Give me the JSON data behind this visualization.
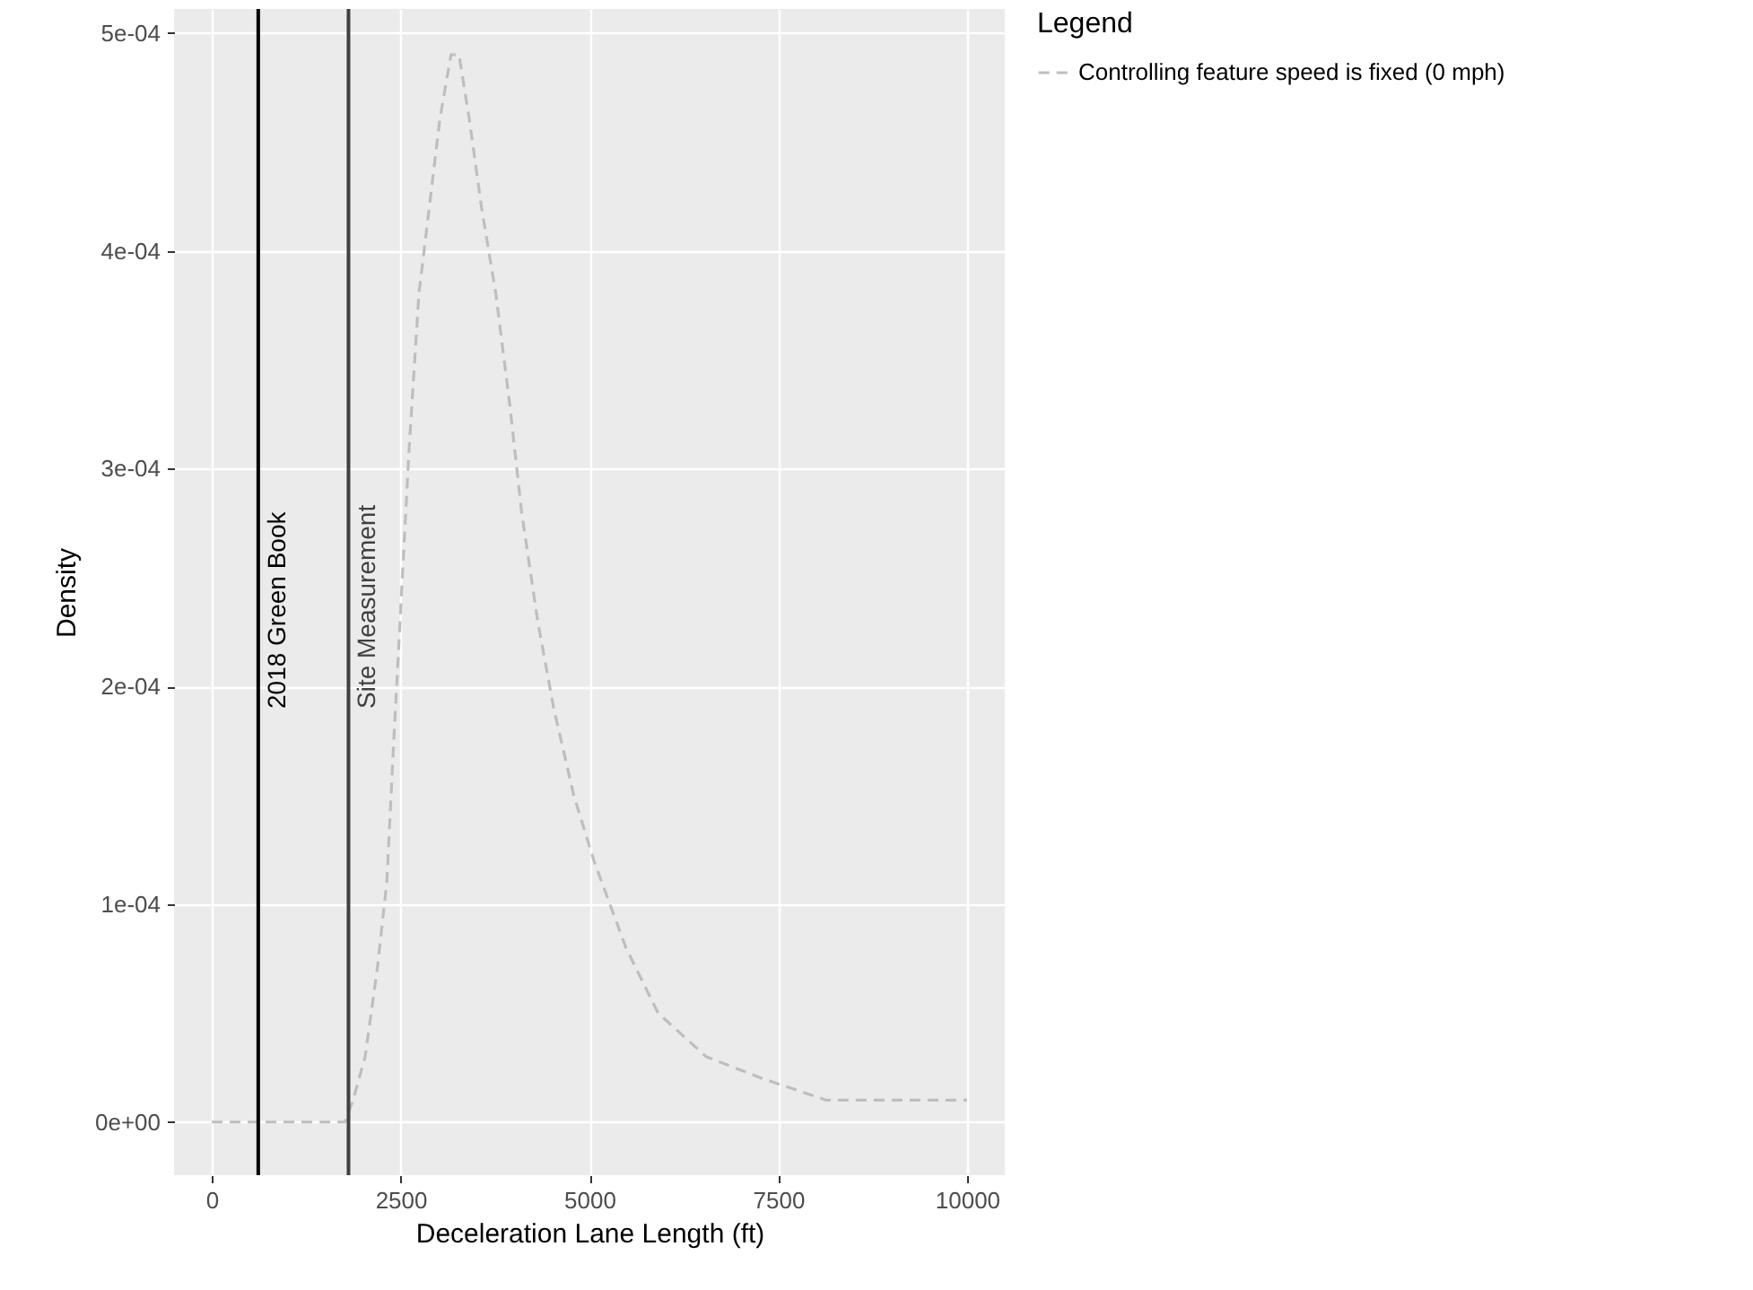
{
  "chart_data": {
    "type": "line",
    "xlabel": "Deceleration Lane Length (ft)",
    "ylabel": "Density",
    "legend_title": "Legend",
    "x": [
      0,
      1764,
      1870,
      2030,
      2190,
      2317,
      2402,
      2508,
      2614,
      2742,
      2880,
      3018,
      3167,
      3273,
      3411,
      3571,
      3762,
      3943,
      4102,
      4315,
      4527,
      4793,
      5059,
      5484,
      5909,
      6546,
      7290,
      8140,
      8884,
      10000
    ],
    "series": [
      {
        "name": "Controlling feature speed is fixed (0 mph)",
        "color": "#bebebe",
        "line_style": "dashed",
        "values": [
          0,
          0,
          1e-05,
          3e-05,
          7e-05,
          0.00011,
          0.00017,
          0.00024,
          0.00031,
          0.00038,
          0.00042,
          0.00046,
          0.00049,
          0.00049,
          0.00046,
          0.00042,
          0.00038,
          0.00033,
          0.00028,
          0.00023,
          0.00019,
          0.00015,
          0.00012,
          8e-05,
          5e-05,
          3e-05,
          2e-05,
          1e-05,
          1e-05,
          1e-05
        ]
      }
    ],
    "xlim": [
      -500,
      10500
    ],
    "xticks": [
      0,
      2500,
      5000,
      7500,
      10000
    ],
    "ylim": [
      -2.44e-05,
      0.000511
    ],
    "yticks": [
      {
        "value": 0,
        "label": "0e+00"
      },
      {
        "value": 0.0001,
        "label": "1e-04"
      },
      {
        "value": 0.0002,
        "label": "2e-04"
      },
      {
        "value": 0.0003,
        "label": "3e-04"
      },
      {
        "value": 0.0004,
        "label": "4e-04"
      },
      {
        "value": 0.0005,
        "label": "5e-04"
      }
    ],
    "ref_lines": [
      {
        "axis": "x",
        "value": 615,
        "label": "2018 Green Book",
        "color": "#000000"
      },
      {
        "axis": "x",
        "value": 1810,
        "label": "Site Measurement",
        "color": "#404040"
      }
    ],
    "grid": true,
    "legend": "right"
  }
}
